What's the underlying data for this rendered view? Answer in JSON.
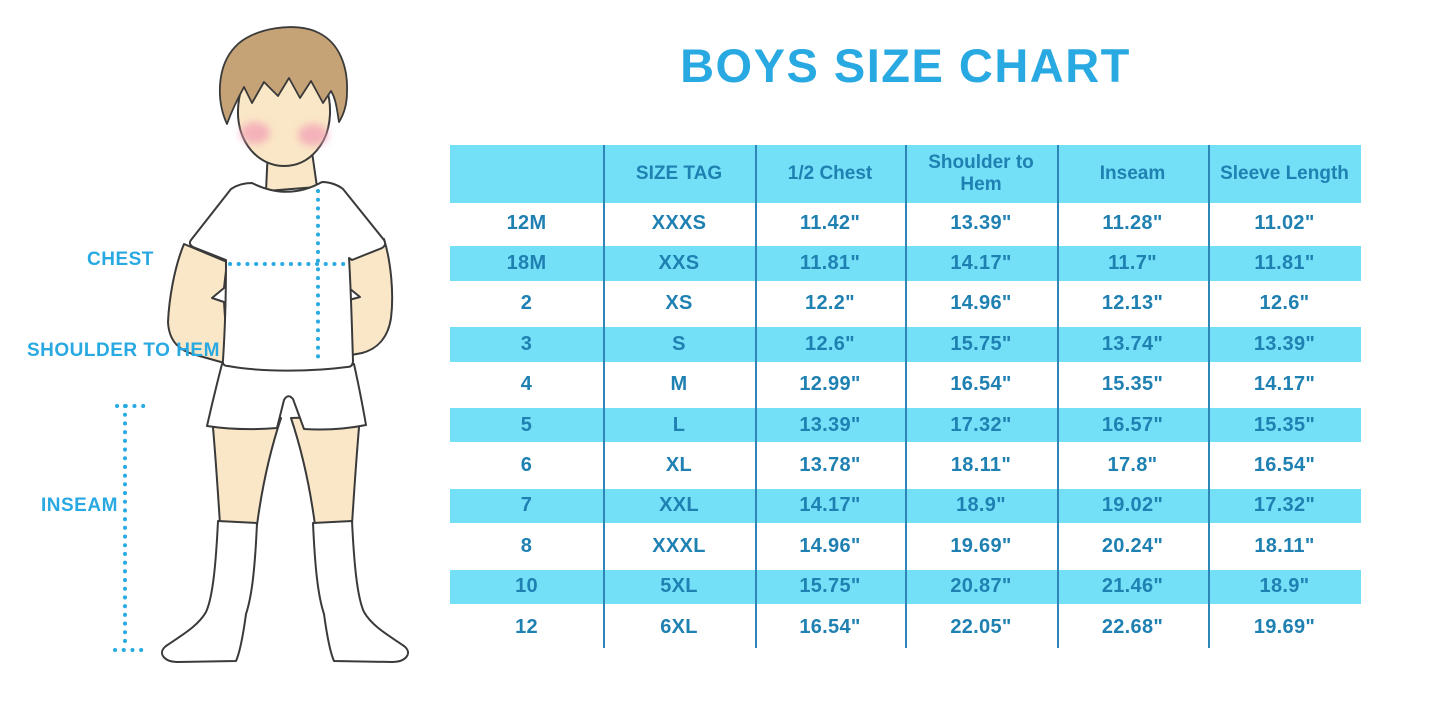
{
  "chart_data": {
    "type": "table",
    "title": "BOYS SIZE CHART",
    "headers": [
      "",
      "SIZE TAG",
      "1/2 Chest",
      "Shoulder to Hem",
      "Inseam",
      "Sleeve Length"
    ],
    "rows": [
      [
        "12M",
        "XXXS",
        "11.42\"",
        "13.39\"",
        "11.28\"",
        "11.02\""
      ],
      [
        "18M",
        "XXS",
        "11.81\"",
        "14.17\"",
        "11.7\"",
        "11.81\""
      ],
      [
        "2",
        "XS",
        "12.2\"",
        "14.96\"",
        "12.13\"",
        "12.6\""
      ],
      [
        "3",
        "S",
        "12.6\"",
        "15.75\"",
        "13.74\"",
        "13.39\""
      ],
      [
        "4",
        "M",
        "12.99\"",
        "16.54\"",
        "15.35\"",
        "14.17\""
      ],
      [
        "5",
        "L",
        "13.39\"",
        "17.32\"",
        "16.57\"",
        "15.35\""
      ],
      [
        "6",
        "XL",
        "13.78\"",
        "18.11\"",
        "17.8\"",
        "16.54\""
      ],
      [
        "7",
        "XXL",
        "14.17\"",
        "18.9\"",
        "19.02\"",
        "17.32\""
      ],
      [
        "8",
        "XXXL",
        "14.96\"",
        "19.69\"",
        "20.24\"",
        "18.11\""
      ],
      [
        "10",
        "5XL",
        "15.75\"",
        "20.87\"",
        "21.46\"",
        "18.9\""
      ],
      [
        "12",
        "6XL",
        "16.54\"",
        "22.05\"",
        "22.68\"",
        "19.69\""
      ]
    ],
    "grid": "alternating-row-stripes",
    "legend_position": "none"
  },
  "figure": {
    "labels": {
      "chest": "CHEST",
      "shoulder_to_hem": "SHOULDER TO HEM",
      "inseam": "INSEAM"
    }
  },
  "colors": {
    "accent": "#29A9E1",
    "table_fill": "#74E0F7",
    "table_text": "#1F80B2",
    "divider": "#2E86B6",
    "dotted_line": "#29ABE2",
    "skin": "#FAE7C7",
    "hair": "#C5A376",
    "blush": "#F2A0B5",
    "outline": "#3A3A3A"
  }
}
